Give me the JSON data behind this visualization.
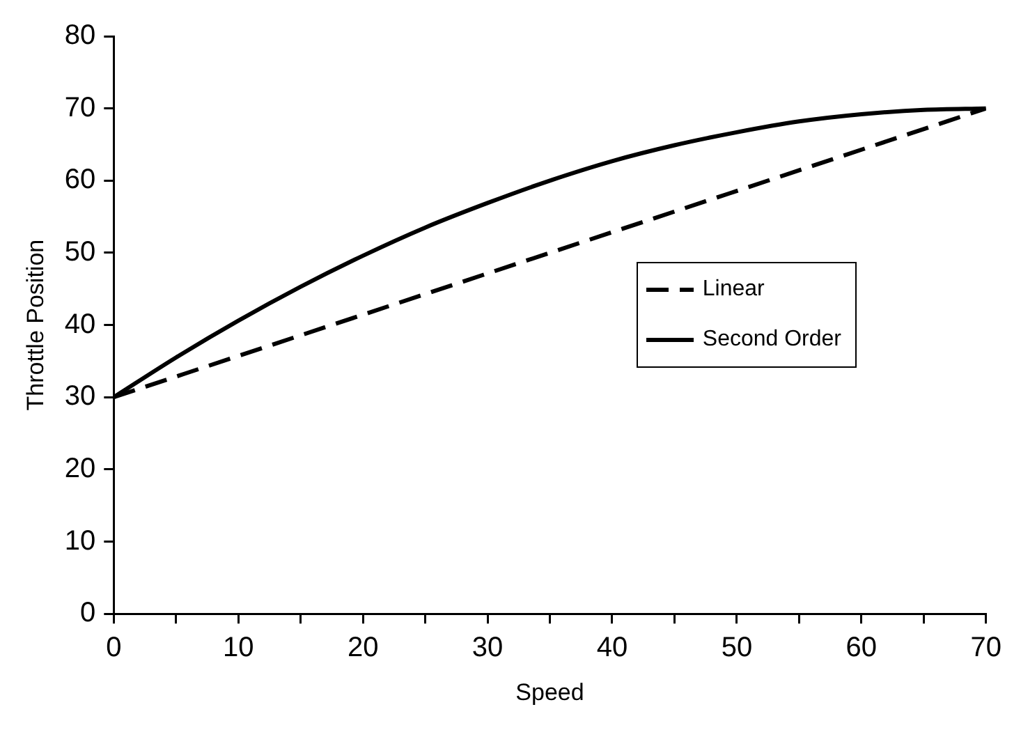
{
  "chart_data": {
    "type": "line",
    "xlabel": "Speed",
    "ylabel": "Throttle Position",
    "xlim": [
      0,
      70
    ],
    "ylim": [
      0,
      80
    ],
    "xticks": [
      0,
      {
        "value": 5,
        "label": null
      },
      10,
      {
        "value": 15,
        "label": null
      },
      20,
      {
        "value": 25,
        "label": null
      },
      30,
      {
        "value": 35,
        "label": null
      },
      40,
      {
        "value": 45,
        "label": null
      },
      50,
      {
        "value": 55,
        "label": null
      },
      60,
      {
        "value": 65,
        "label": null
      },
      70
    ],
    "yticks": [
      0,
      10,
      20,
      30,
      40,
      50,
      60,
      70,
      80
    ],
    "grid": false,
    "legend": "right",
    "series": [
      {
        "name": "Linear",
        "color": "#000000",
        "line_style": "dashed",
        "x": [
          0,
          70
        ],
        "values": [
          30,
          70
        ]
      },
      {
        "name": "Second Order",
        "color": "#000000",
        "line_style": "solid",
        "x": [
          0,
          5,
          10,
          15,
          20,
          25,
          30,
          35,
          40,
          45,
          50,
          55,
          60,
          65,
          70
        ],
        "values": [
          30,
          35.5,
          40.6,
          45.3,
          49.6,
          53.5,
          56.9,
          60,
          62.7,
          64.9,
          66.7,
          68.2,
          69.2,
          69.8,
          70
        ]
      }
    ]
  }
}
